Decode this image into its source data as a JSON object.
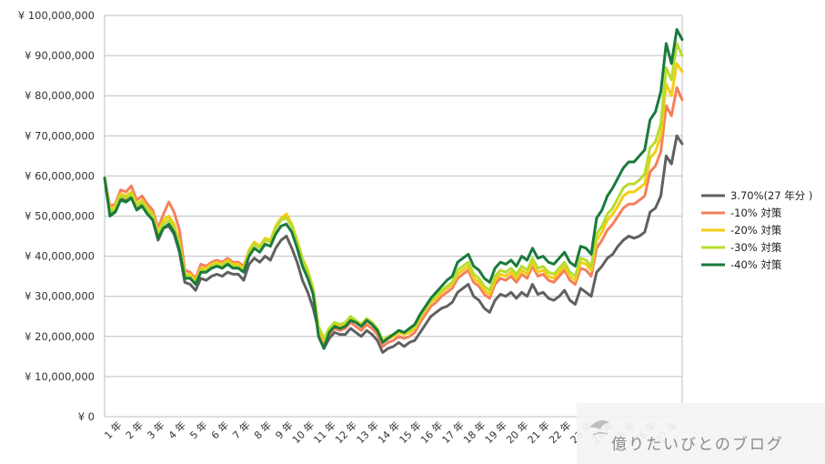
{
  "watermark": "億りたいびとのブログ",
  "chart_data": {
    "type": "line",
    "ylim": [
      0,
      100000000
    ],
    "y_ticks": [
      {
        "value": 0,
        "label": "¥ 0"
      },
      {
        "value": 10000000,
        "label": "¥ 10,000,000"
      },
      {
        "value": 20000000,
        "label": "¥ 20,000,000"
      },
      {
        "value": 30000000,
        "label": "¥ 30,000,000"
      },
      {
        "value": 40000000,
        "label": "¥ 40,000,000"
      },
      {
        "value": 50000000,
        "label": "¥ 50,000,000"
      },
      {
        "value": 60000000,
        "label": "¥ 60,000,000"
      },
      {
        "value": 70000000,
        "label": "¥ 70,000,000"
      },
      {
        "value": 80000000,
        "label": "¥ 80,000,000"
      },
      {
        "value": 90000000,
        "label": "¥ 90,000,000"
      },
      {
        "value": 100000000,
        "label": "¥ 100,000,000"
      }
    ],
    "x_range": [
      0,
      27
    ],
    "x_ticks": [
      {
        "value": 1,
        "label": "1 年"
      },
      {
        "value": 2,
        "label": "2 年"
      },
      {
        "value": 3,
        "label": "3 年"
      },
      {
        "value": 4,
        "label": "4 年"
      },
      {
        "value": 5,
        "label": "5 年"
      },
      {
        "value": 6,
        "label": "6 年"
      },
      {
        "value": 7,
        "label": "7 年"
      },
      {
        "value": 8,
        "label": "8 年"
      },
      {
        "value": 9,
        "label": "9 年"
      },
      {
        "value": 10,
        "label": "10 年"
      },
      {
        "value": 11,
        "label": "11 年"
      },
      {
        "value": 12,
        "label": "12 年"
      },
      {
        "value": 13,
        "label": "13 年"
      },
      {
        "value": 14,
        "label": "14 年"
      },
      {
        "value": 15,
        "label": "15 年"
      },
      {
        "value": 16,
        "label": "16 年"
      },
      {
        "value": 17,
        "label": "17 年"
      },
      {
        "value": 18,
        "label": "18 年"
      },
      {
        "value": 19,
        "label": "19 年"
      },
      {
        "value": 20,
        "label": "20 年"
      },
      {
        "value": 21,
        "label": "21 年"
      },
      {
        "value": 22,
        "label": "22 年"
      },
      {
        "value": 23,
        "label": "23 年"
      },
      {
        "value": 24,
        "label": "24 年"
      },
      {
        "value": 25,
        "label": "25 年"
      },
      {
        "value": 26,
        "label": "26 年"
      },
      {
        "value": 27,
        "label": "27 年"
      }
    ],
    "grid": true,
    "legend_position": "right",
    "x": [
      0,
      0.25,
      0.5,
      0.75,
      1,
      1.25,
      1.5,
      1.75,
      2,
      2.25,
      2.5,
      2.75,
      3,
      3.25,
      3.5,
      3.75,
      4,
      4.25,
      4.5,
      4.75,
      5,
      5.25,
      5.5,
      5.75,
      6,
      6.25,
      6.5,
      6.75,
      7,
      7.25,
      7.5,
      7.75,
      8,
      8.25,
      8.5,
      8.75,
      9,
      9.25,
      9.5,
      9.75,
      10,
      10.25,
      10.5,
      10.75,
      11,
      11.25,
      11.5,
      11.75,
      12,
      12.25,
      12.5,
      12.75,
      13,
      13.25,
      13.5,
      13.75,
      14,
      14.25,
      14.5,
      14.75,
      15,
      15.25,
      15.5,
      15.75,
      16,
      16.25,
      16.5,
      16.75,
      17,
      17.25,
      17.5,
      17.75,
      18,
      18.25,
      18.5,
      18.75,
      19,
      19.25,
      19.5,
      19.75,
      20,
      20.25,
      20.5,
      20.75,
      21,
      21.25,
      21.5,
      21.75,
      22,
      22.25,
      22.5,
      22.75,
      23,
      23.25,
      23.5,
      23.75,
      24,
      24.25,
      24.5,
      24.75,
      25,
      25.25,
      25.5,
      25.75,
      26,
      26.25,
      26.5,
      26.75,
      27
    ],
    "series": [
      {
        "name": "3.70%(27 年分 )",
        "color": "#606060",
        "values": [
          59.5,
          50.5,
          51.5,
          54.5,
          53.8,
          55.0,
          52.0,
          53.0,
          51.5,
          49.0,
          44.0,
          47.0,
          47.5,
          45.5,
          41.0,
          33.5,
          33.0,
          31.5,
          34.5,
          34.0,
          35.0,
          35.5,
          35.0,
          36.0,
          35.5,
          35.5,
          34.0,
          38.0,
          39.5,
          38.5,
          40.0,
          39.0,
          42.0,
          44.0,
          45.0,
          42.0,
          38.5,
          34.0,
          31.0,
          27.0,
          21.5,
          17.0,
          19.5,
          21.0,
          20.5,
          20.5,
          22.0,
          21.0,
          20.0,
          21.5,
          20.5,
          19.0,
          16.0,
          17.0,
          17.5,
          18.5,
          17.5,
          18.5,
          19.0,
          21.0,
          23.0,
          25.0,
          26.0,
          27.0,
          27.5,
          28.5,
          31.0,
          32.0,
          33.0,
          30.0,
          29.0,
          27.0,
          26.0,
          29.0,
          30.5,
          30.0,
          31.0,
          29.5,
          31.0,
          30.0,
          33.0,
          30.5,
          31.0,
          29.5,
          29.0,
          30.0,
          31.5,
          29.0,
          28.0,
          32.0,
          31.0,
          30.0,
          36.0,
          37.5,
          39.5,
          40.5,
          42.5,
          44.0,
          45.0,
          44.5,
          45.0,
          46.0,
          51.0,
          52.0,
          55.0,
          65.0,
          63.0,
          70.0,
          68.0
        ]
      },
      {
        "name": "-10% 対策",
        "color": "#f4805c",
        "values": [
          59.5,
          52.5,
          53.0,
          56.5,
          56.0,
          57.5,
          54.0,
          55.0,
          53.0,
          51.5,
          47.0,
          50.5,
          53.5,
          51.0,
          46.5,
          36.5,
          36.0,
          34.5,
          38.0,
          37.5,
          38.5,
          39.0,
          38.5,
          39.5,
          38.5,
          38.5,
          37.5,
          41.5,
          43.5,
          42.5,
          44.0,
          43.5,
          47.0,
          49.0,
          50.5,
          47.5,
          43.0,
          38.5,
          35.5,
          31.0,
          21.0,
          18.0,
          20.5,
          22.0,
          21.5,
          22.0,
          23.5,
          22.5,
          21.5,
          23.0,
          22.0,
          20.5,
          17.5,
          18.5,
          19.0,
          20.0,
          19.5,
          20.0,
          21.0,
          23.5,
          25.5,
          27.5,
          28.5,
          30.0,
          31.0,
          32.0,
          34.5,
          35.5,
          36.5,
          33.5,
          32.5,
          30.5,
          29.5,
          33.0,
          34.5,
          34.0,
          35.0,
          33.5,
          35.5,
          34.5,
          37.5,
          35.0,
          35.5,
          34.0,
          33.5,
          35.0,
          36.5,
          34.0,
          33.0,
          37.0,
          36.5,
          35.0,
          42.0,
          44.0,
          46.5,
          48.0,
          50.0,
          52.0,
          53.0,
          53.0,
          54.0,
          55.0,
          61.0,
          62.5,
          66.0,
          77.5,
          75.0,
          82.0,
          79.0
        ]
      },
      {
        "name": "-20% 対策",
        "color": "#f5cc16",
        "values": [
          59.5,
          51.5,
          52.5,
          55.5,
          55.0,
          56.0,
          53.0,
          54.0,
          52.0,
          50.5,
          46.0,
          49.0,
          50.0,
          48.0,
          43.5,
          35.5,
          35.5,
          34.0,
          37.0,
          37.0,
          38.0,
          38.5,
          38.0,
          39.0,
          38.0,
          38.0,
          37.0,
          41.5,
          43.5,
          42.5,
          44.5,
          44.0,
          47.5,
          49.5,
          50.5,
          48.0,
          44.0,
          39.5,
          36.5,
          32.0,
          22.0,
          19.0,
          21.5,
          23.0,
          22.5,
          23.0,
          24.5,
          23.5,
          22.5,
          24.0,
          23.0,
          21.5,
          18.5,
          19.5,
          20.0,
          21.0,
          20.5,
          21.0,
          22.0,
          24.5,
          26.5,
          28.5,
          29.5,
          31.0,
          32.0,
          33.0,
          35.5,
          36.5,
          37.5,
          34.5,
          33.5,
          31.5,
          30.5,
          34.0,
          35.5,
          35.0,
          36.0,
          34.5,
          36.5,
          35.5,
          38.5,
          36.0,
          36.5,
          35.0,
          34.5,
          36.0,
          37.5,
          35.0,
          34.0,
          38.5,
          38.0,
          36.5,
          44.0,
          46.0,
          49.0,
          50.5,
          52.5,
          55.0,
          56.0,
          56.0,
          57.0,
          58.0,
          64.5,
          66.0,
          70.0,
          83.0,
          80.0,
          88.0,
          86.0
        ]
      },
      {
        "name": "-30% 対策",
        "color": "#b6dd2e",
        "values": [
          59.5,
          51.0,
          52.0,
          55.0,
          54.5,
          55.5,
          52.5,
          53.5,
          51.5,
          50.0,
          45.5,
          48.0,
          49.0,
          47.0,
          42.5,
          35.0,
          35.0,
          33.5,
          36.5,
          36.5,
          37.5,
          38.0,
          37.5,
          38.5,
          37.5,
          37.5,
          36.5,
          41.0,
          43.0,
          42.0,
          44.0,
          43.5,
          47.0,
          49.0,
          49.5,
          47.5,
          43.5,
          39.0,
          36.0,
          31.5,
          22.5,
          19.5,
          22.0,
          23.5,
          23.0,
          23.5,
          25.0,
          24.0,
          23.0,
          24.5,
          23.5,
          22.0,
          19.0,
          20.0,
          20.5,
          21.5,
          21.0,
          21.5,
          22.5,
          25.0,
          27.0,
          29.0,
          30.0,
          31.5,
          32.5,
          33.5,
          36.5,
          37.5,
          38.5,
          35.5,
          34.5,
          32.5,
          31.5,
          35.0,
          36.5,
          36.0,
          37.0,
          35.5,
          37.5,
          36.5,
          39.5,
          37.0,
          37.5,
          36.0,
          35.5,
          37.0,
          38.5,
          36.0,
          35.0,
          39.5,
          39.0,
          37.5,
          45.5,
          47.5,
          50.5,
          52.0,
          54.5,
          57.0,
          58.0,
          58.0,
          59.0,
          60.5,
          67.0,
          68.5,
          73.0,
          87.0,
          84.0,
          93.0,
          90.0
        ]
      },
      {
        "name": "-40% 対策",
        "color": "#1a7a3c",
        "values": [
          59.5,
          50.0,
          51.0,
          54.0,
          53.5,
          54.5,
          51.5,
          52.5,
          50.5,
          49.0,
          44.5,
          47.0,
          48.0,
          46.0,
          41.5,
          34.5,
          34.5,
          33.0,
          36.0,
          36.0,
          37.0,
          37.5,
          37.0,
          38.0,
          37.0,
          37.0,
          36.0,
          40.0,
          42.0,
          41.0,
          43.0,
          42.5,
          45.5,
          47.5,
          48.0,
          46.0,
          42.0,
          37.5,
          34.5,
          30.5,
          20.0,
          17.0,
          21.0,
          22.5,
          22.0,
          22.5,
          24.0,
          23.5,
          22.5,
          24.0,
          23.0,
          21.5,
          18.5,
          19.5,
          20.5,
          21.5,
          21.0,
          22.0,
          23.0,
          25.5,
          27.5,
          29.5,
          31.0,
          32.5,
          34.0,
          35.0,
          38.5,
          39.5,
          40.5,
          37.5,
          36.5,
          34.5,
          33.5,
          37.0,
          38.5,
          38.0,
          39.0,
          37.5,
          40.0,
          39.0,
          42.0,
          39.5,
          40.0,
          38.5,
          38.0,
          39.5,
          41.0,
          38.5,
          37.5,
          42.5,
          42.0,
          40.5,
          49.5,
          51.5,
          55.0,
          57.0,
          59.5,
          62.0,
          63.5,
          63.5,
          65.0,
          66.5,
          74.0,
          76.0,
          81.0,
          93.0,
          88.0,
          96.5,
          94.0
        ]
      }
    ]
  }
}
